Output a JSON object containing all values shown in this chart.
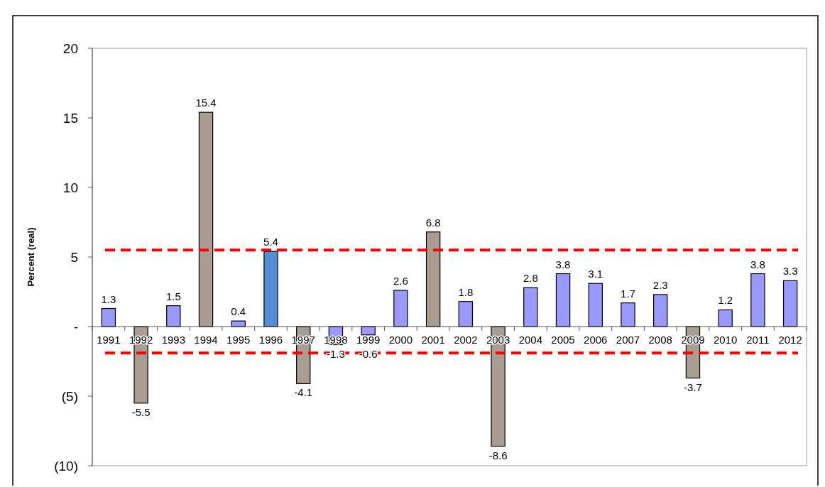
{
  "chart_data": {
    "type": "bar",
    "ylabel": "Percent (real)",
    "categories": [
      "1991",
      "1992",
      "1993",
      "1994",
      "1995",
      "1996",
      "1997",
      "1998",
      "1999",
      "2000",
      "2001",
      "2002",
      "2003",
      "2004",
      "2005",
      "2006",
      "2007",
      "2008",
      "2009",
      "2010",
      "2011",
      "2012"
    ],
    "values": [
      1.3,
      -5.5,
      1.5,
      15.4,
      0.4,
      5.4,
      -4.1,
      -1.3,
      -0.6,
      2.6,
      6.8,
      1.8,
      -8.6,
      2.8,
      3.8,
      3.1,
      1.7,
      2.3,
      -3.7,
      1.2,
      3.8,
      3.3
    ],
    "colors": [
      "#9999ff",
      "#a99d91",
      "#9999ff",
      "#a99d91",
      "#9999ff",
      "#558ed5",
      "#a99d91",
      "#9999ff",
      "#9999ff",
      "#9999ff",
      "#a99d91",
      "#9999ff",
      "#a99d91",
      "#9999ff",
      "#9999ff",
      "#9999ff",
      "#9999ff",
      "#9999ff",
      "#a99d91",
      "#9999ff",
      "#9999ff",
      "#9999ff"
    ],
    "ylim": [
      -10,
      20
    ],
    "yticks": [
      20,
      15,
      10,
      5,
      {
        "value": 0,
        "label": "-"
      },
      {
        "value": -5,
        "label": "(5)"
      },
      {
        "value": -10,
        "label": "(10)"
      }
    ],
    "ref_lines": [
      {
        "axis": "y",
        "value": 5.5,
        "color": "#ff0000",
        "line_style": "dashed"
      },
      {
        "axis": "y",
        "value": -1.9,
        "color": "#ff0000",
        "line_style": "dashed"
      }
    ],
    "data_labels": true,
    "grid": false
  }
}
